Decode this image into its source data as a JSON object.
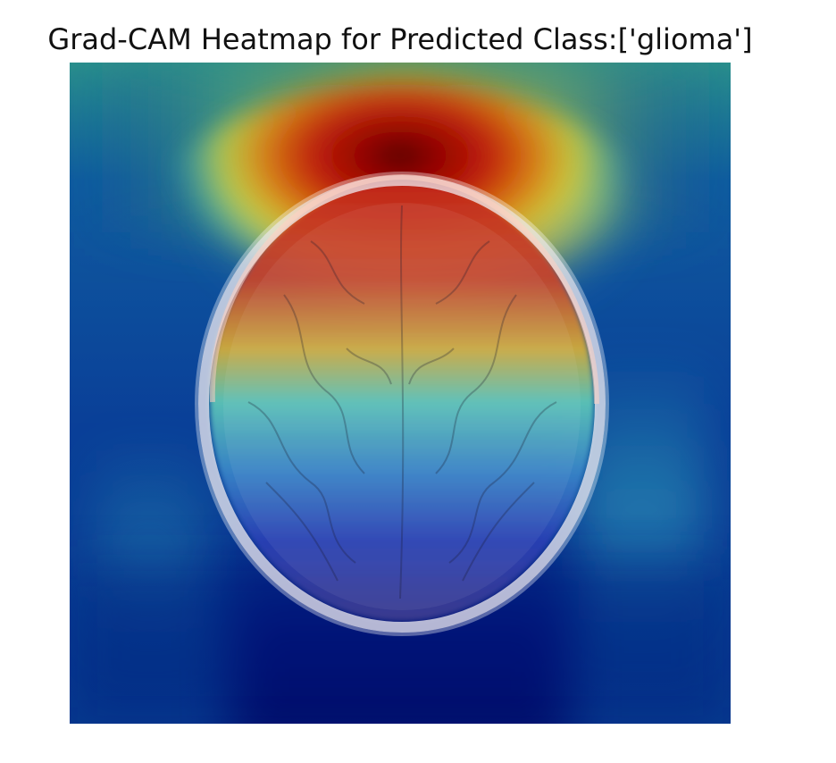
{
  "figure": {
    "title": "Grad-CAM Heatmap for Predicted Class:['glioma']"
  },
  "heatmap": {
    "colormap": "jet",
    "palette": {
      "dark_blue": "#00006e",
      "blue": "#0a3c9e",
      "cyan": "#2fc6d2",
      "yellow": "#d8d22b",
      "orange": "#e07b12",
      "red": "#b90d0b",
      "dark_red": "#3f0000"
    }
  }
}
